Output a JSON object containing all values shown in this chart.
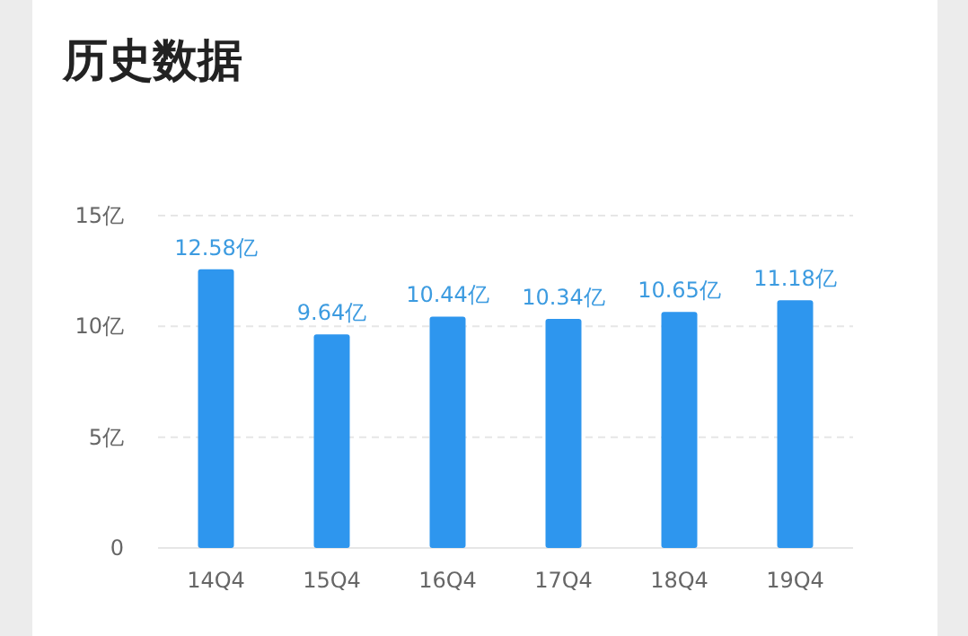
{
  "chart_data": {
    "type": "bar",
    "title": "历史数据",
    "categories": [
      "14Q4",
      "15Q4",
      "16Q4",
      "17Q4",
      "18Q4",
      "19Q4"
    ],
    "values": [
      12.58,
      9.64,
      10.44,
      10.34,
      10.65,
      11.18
    ],
    "value_labels": [
      "12.58亿",
      "9.64亿",
      "10.44亿",
      "10.34亿",
      "10.65亿",
      "11.18亿"
    ],
    "color": "#2e96ee",
    "ylim": [
      0,
      15
    ],
    "yticks": [
      0,
      {
        "value": 5,
        "label": "5亿"
      },
      {
        "value": 10,
        "label": "10亿"
      },
      {
        "value": 15,
        "label": "15亿"
      }
    ],
    "grid": "y"
  }
}
